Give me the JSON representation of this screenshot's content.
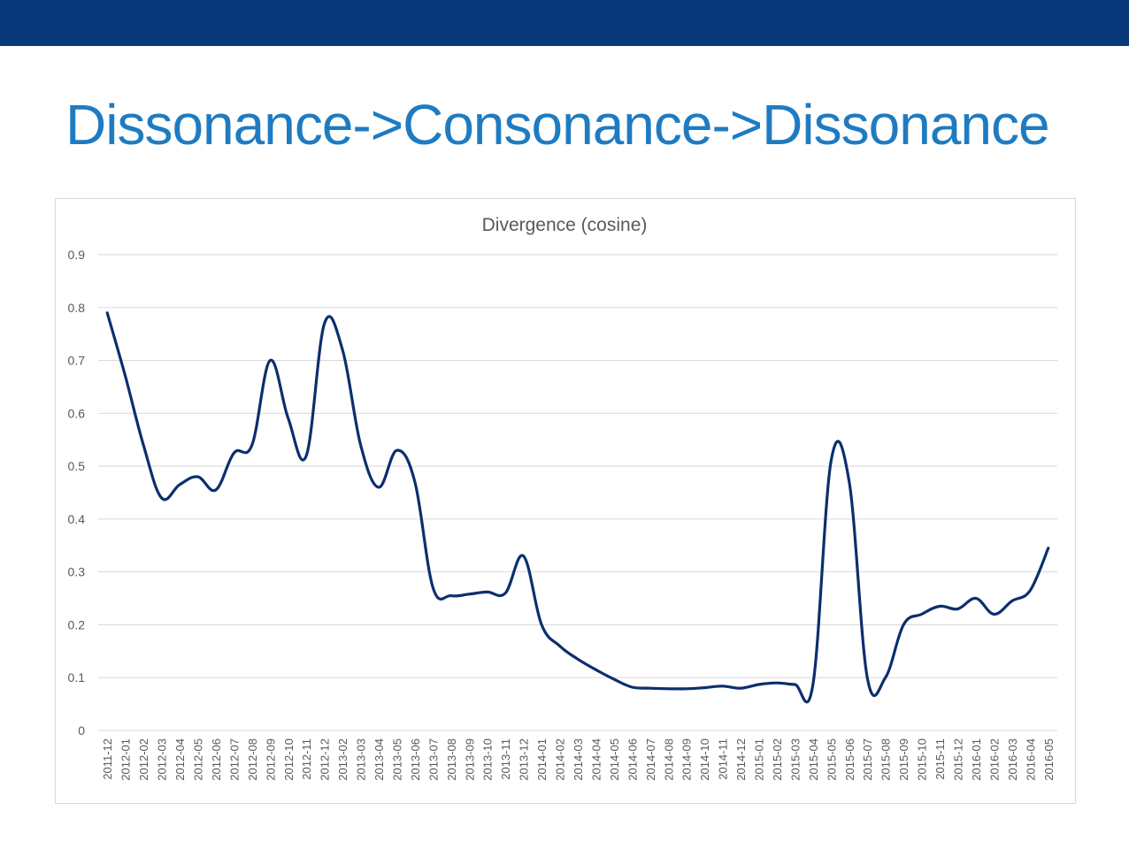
{
  "slide": {
    "title": "Dissonance->Consonance->Dissonance",
    "colors": {
      "top_bar": "#0a397b",
      "title": "#1f7bc1"
    }
  },
  "chart_data": {
    "type": "line",
    "title": "Divergence (cosine)",
    "xlabel": "",
    "ylabel": "",
    "ylim": [
      0,
      0.9
    ],
    "yticks": [
      "0",
      "0.1",
      "0.2",
      "0.3",
      "0.4",
      "0.5",
      "0.6",
      "0.7",
      "0.8",
      "0.9"
    ],
    "grid": true,
    "legend": "none",
    "line_color": "#0b2f6e",
    "smooth": true,
    "categories": [
      "2011-12",
      "2012-01",
      "2012-02",
      "2012-03",
      "2012-04",
      "2012-05",
      "2012-06",
      "2012-07",
      "2012-08",
      "2012-09",
      "2012-10",
      "2012-11",
      "2012-12",
      "2013-02",
      "2013-03",
      "2013-04",
      "2013-05",
      "2013-06",
      "2013-07",
      "2013-08",
      "2013-09",
      "2013-10",
      "2013-11",
      "2013-12",
      "2014-01",
      "2014-02",
      "2014-03",
      "2014-04",
      "2014-05",
      "2014-06",
      "2014-07",
      "2014-08",
      "2014-09",
      "2014-10",
      "2014-11",
      "2014-12",
      "2015-01",
      "2015-02",
      "2015-03",
      "2015-04",
      "2015-05",
      "2015-06",
      "2015-07",
      "2015-08",
      "2015-09",
      "2015-10",
      "2015-11",
      "2015-12",
      "2016-01",
      "2016-02",
      "2016-03",
      "2016-04",
      "2016-05"
    ],
    "series": [
      {
        "values": [
          0.79,
          0.67,
          0.54,
          0.44,
          0.465,
          0.48,
          0.455,
          0.525,
          0.54,
          0.7,
          0.59,
          0.52,
          0.77,
          0.72,
          0.54,
          0.46,
          0.53,
          0.47,
          0.27,
          0.255,
          0.258,
          0.262,
          0.26,
          0.33,
          0.2,
          0.16,
          0.135,
          0.115,
          0.097,
          0.082,
          0.08,
          0.079,
          0.079,
          0.081,
          0.084,
          0.08,
          0.087,
          0.09,
          0.087,
          0.088,
          0.51,
          0.47,
          0.1,
          0.1,
          0.2,
          0.22,
          0.235,
          0.23,
          0.25,
          0.22,
          0.245,
          0.265,
          0.345
        ]
      }
    ]
  }
}
